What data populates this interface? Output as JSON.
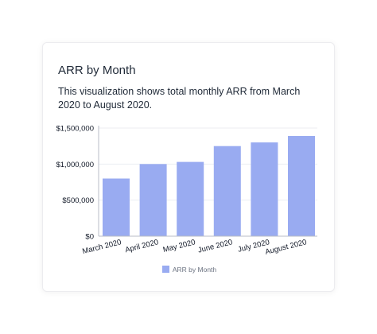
{
  "card": {
    "title": "ARR by Month",
    "description": "This visualization shows total monthly ARR from March 2020 to August 2020."
  },
  "colors": {
    "bar": "#99abf1",
    "axis": "#b9bec7",
    "grid": "#eceef2",
    "text": "#111827",
    "legend_text": "#6b7280"
  },
  "chart_data": {
    "type": "bar",
    "categories": [
      "March 2020",
      "April 2020",
      "May 2020",
      "June 2020",
      "July 2020",
      "August 2020"
    ],
    "series": [
      {
        "name": "ARR by Month",
        "values": [
          800000,
          1000000,
          1030000,
          1250000,
          1300000,
          1390000
        ]
      }
    ],
    "ylim": [
      0,
      1500000
    ],
    "yticks": [
      0,
      500000,
      1000000,
      1500000
    ],
    "ytick_labels": [
      "$0",
      "$500,000",
      "$1,000,000",
      "$1,500,000"
    ],
    "xlabel": "",
    "ylabel": "",
    "grid": true,
    "legend": "bottom-center"
  }
}
